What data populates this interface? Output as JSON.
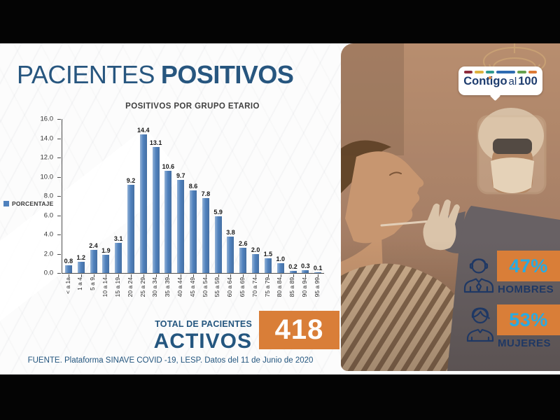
{
  "header": {
    "title_regular": "PACIENTES",
    "title_bold": "POSITIVOS"
  },
  "chart_data": {
    "type": "bar",
    "title": "POSITIVOS POR GRUPO ETARIO",
    "legend": "PORCENTAJE",
    "legend_position": "left",
    "grid": false,
    "categories": [
      "< a 1a",
      "1 a 4",
      "5 a 9",
      "10 a 14",
      "15 a 19",
      "20 a 24",
      "25 a 29",
      "30 a 34",
      "35 a 39",
      "40 a 44",
      "45 a 49",
      "50 a 54",
      "55 a 59",
      "60 a 64",
      "65 a 69",
      "70 a 74",
      "75 a 79",
      "80 a 84",
      "85 a 89",
      "90 a 94",
      "95 a 99"
    ],
    "values": [
      0.8,
      1.2,
      2.4,
      1.9,
      3.1,
      9.2,
      14.4,
      13.1,
      10.6,
      9.7,
      8.6,
      7.8,
      5.9,
      3.8,
      2.6,
      2.0,
      1.5,
      1.0,
      0.2,
      0.3,
      0.1
    ],
    "ylim": [
      0,
      16
    ],
    "ytick_step": 2,
    "xlabel": "",
    "ylabel": "",
    "bar_color": "#4f81bd"
  },
  "totals": {
    "label_line1": "TOTAL DE PACIENTES",
    "label_line2": "ACTIVOS",
    "value": "418"
  },
  "footer": {
    "source": "FUENTE. Plataforma SINAVE COVID -19, LESP. Datos del 11 de Junio de 2020"
  },
  "logo": {
    "word1": "Contigo",
    "word2": "al",
    "word3": "100",
    "dash_colors": [
      "#8f2b3c",
      "#dfb23e",
      "#2f9a8f",
      "#2e6cb2",
      "#67a14e",
      "#dd7a36"
    ]
  },
  "demographics": {
    "0": {
      "icon": "man-icon",
      "value": "47%",
      "label": "HOMBRES"
    },
    "1": {
      "icon": "woman-icon",
      "value": "53%",
      "label": "MUJERES"
    }
  },
  "colors": {
    "title_navy": "#27567f",
    "stat_navy": "#1f3864",
    "accent_orange": "#d97e38",
    "accent_cyan": "#29abe2",
    "bar_blue": "#4f81bd"
  }
}
